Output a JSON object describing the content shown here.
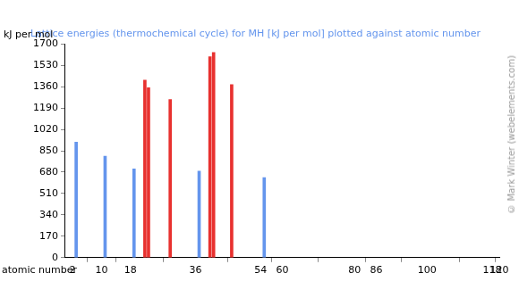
{
  "chart_data": {
    "type": "bar",
    "title": "Lattice energies (thermochemical cycle) for MH [kJ per mol] plotted against atomic number",
    "x_label": "atomic number",
    "y_label": "kJ per mol",
    "annotations": [
      "© Mark Winter (webelements.com)"
    ],
    "x": [
      3,
      11,
      19,
      22,
      23,
      29,
      37,
      40,
      41,
      46,
      55
    ],
    "values": [
      918,
      807,
      705,
      1411,
      1351,
      1258,
      688,
      1598,
      1632,
      1377,
      637
    ],
    "colors": [
      "#6495ed",
      "#6495ed",
      "#6495ed",
      "#e8312f",
      "#e8312f",
      "#e8312f",
      "#6495ed",
      "#e8312f",
      "#e8312f",
      "#e8312f",
      "#6495ed"
    ],
    "xlim": [
      0,
      120
    ],
    "xticks": [
      2,
      10,
      18,
      36,
      54,
      60,
      80,
      86,
      100,
      118,
      120
    ],
    "ylim": [
      0,
      1700
    ],
    "yticks": [
      0,
      170,
      340,
      510,
      680,
      850,
      1020,
      1190,
      1360,
      1530,
      1700
    ],
    "grid": false
  }
}
